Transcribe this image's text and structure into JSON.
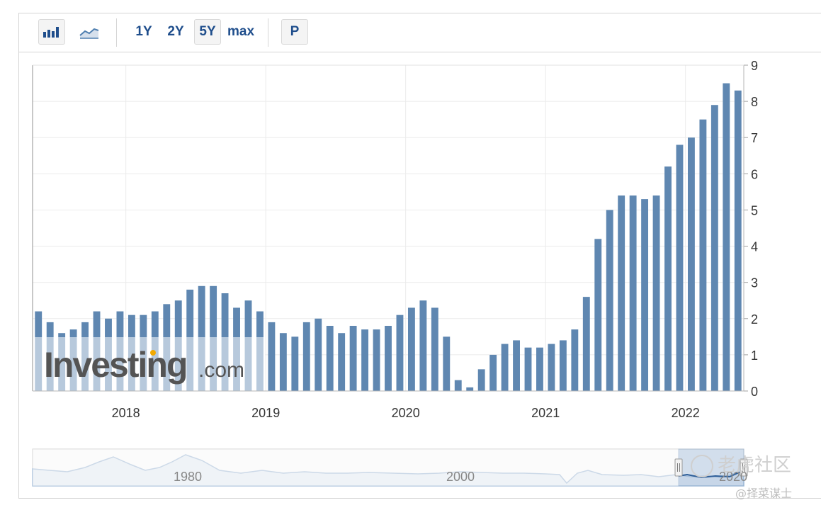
{
  "toolbar": {
    "bar_chart_icon": "bar-chart-icon",
    "line_chart_icon": "line-chart-icon",
    "range_1y": "1Y",
    "range_2y": "2Y",
    "range_5y": "5Y",
    "range_max": "max",
    "range_selected": "5Y",
    "p_label": "P"
  },
  "watermark": {
    "logo_text": "Investing",
    "logo_suffix": ".com",
    "brand_cn": "老虎社区",
    "handle_cn": "@择菜谋士"
  },
  "chart_data": {
    "type": "bar",
    "title": "",
    "xlabel": "",
    "ylabel": "",
    "ylim": [
      0,
      9
    ],
    "y_ticks": [
      "0",
      "1",
      "2",
      "3",
      "4",
      "5",
      "6",
      "7",
      "8",
      "9"
    ],
    "x_ticks": [
      "2018",
      "2019",
      "2020",
      "2021",
      "2022"
    ],
    "y_axis_position": "right",
    "grid": true,
    "bar_color": "#5f87b1",
    "start": "2017-05",
    "values": [
      2.2,
      1.9,
      1.6,
      1.7,
      1.9,
      2.2,
      2.0,
      2.2,
      2.1,
      2.1,
      2.2,
      2.4,
      2.5,
      2.8,
      2.9,
      2.9,
      2.7,
      2.3,
      2.5,
      2.2,
      1.9,
      1.6,
      1.5,
      1.9,
      2.0,
      1.8,
      1.6,
      1.8,
      1.7,
      1.7,
      1.8,
      2.1,
      2.3,
      2.5,
      2.3,
      1.5,
      0.3,
      0.1,
      0.6,
      1.0,
      1.3,
      1.4,
      1.2,
      1.2,
      1.3,
      1.4,
      1.7,
      2.6,
      4.2,
      5.0,
      5.4,
      5.4,
      5.3,
      5.4,
      6.2,
      6.8,
      7.0,
      7.5,
      7.9,
      8.5,
      8.3
    ]
  },
  "navigator": {
    "labels": [
      "1980",
      "2000",
      "2020"
    ]
  }
}
